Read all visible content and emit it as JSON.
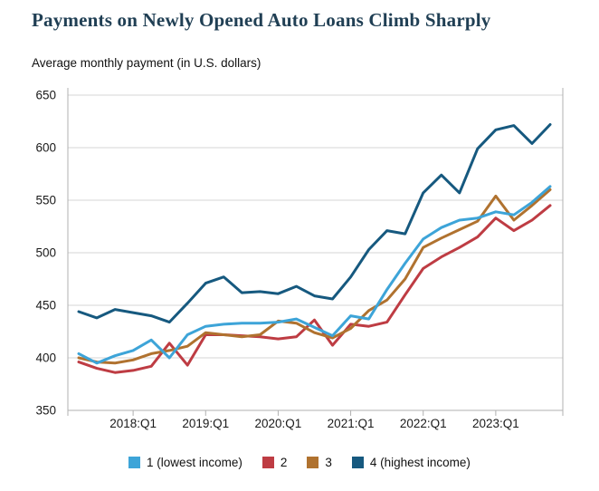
{
  "title": "Payments on Newly Opened Auto Loans Climb Sharply",
  "subtitle": "Average monthly payment (in U.S. dollars)",
  "colors": {
    "title_text": "#203f54",
    "axis": "#b0b0b0",
    "grid": "#d5d5d5",
    "tick_label": "#1a1a1a"
  },
  "chart_data": {
    "type": "line",
    "title": "Payments on Newly Opened Auto Loans Climb Sharply",
    "ylabel": "Average monthly payment (in U.S. dollars)",
    "ylim": [
      350,
      650
    ],
    "yticks": [
      650,
      600,
      550,
      500,
      450,
      400,
      350
    ],
    "grid": "horizontal",
    "legend_position": "bottom",
    "x": [
      "2017:Q2",
      "2017:Q3",
      "2017:Q4",
      "2018:Q1",
      "2018:Q2",
      "2018:Q3",
      "2018:Q4",
      "2019:Q1",
      "2019:Q2",
      "2019:Q3",
      "2019:Q4",
      "2020:Q1",
      "2020:Q2",
      "2020:Q3",
      "2020:Q4",
      "2021:Q1",
      "2021:Q2",
      "2021:Q3",
      "2021:Q4",
      "2022:Q1",
      "2022:Q2",
      "2022:Q3",
      "2022:Q4",
      "2023:Q1",
      "2023:Q2",
      "2023:Q3",
      "2023:Q4"
    ],
    "xticks": [
      "2018:Q1",
      "2019:Q1",
      "2020:Q1",
      "2021:Q1",
      "2022:Q1",
      "2023:Q1"
    ],
    "series": [
      {
        "name": "1 (lowest income)",
        "color": "#3da4d8",
        "values": [
          404,
          395,
          402,
          407,
          417,
          400,
          422,
          430,
          432,
          433,
          433,
          434,
          437,
          429,
          421,
          440,
          437,
          465,
          490,
          513,
          524,
          531,
          533,
          539,
          536,
          548,
          563
        ]
      },
      {
        "name": "2",
        "color": "#be3c43",
        "values": [
          396,
          390,
          386,
          388,
          392,
          414,
          393,
          422,
          422,
          421,
          420,
          418,
          420,
          436,
          412,
          432,
          430,
          434,
          460,
          485,
          496,
          505,
          515,
          533,
          521,
          531,
          545
        ]
      },
      {
        "name": "3",
        "color": "#b0722f",
        "values": [
          400,
          396,
          395,
          398,
          404,
          407,
          411,
          424,
          422,
          420,
          422,
          435,
          433,
          424,
          419,
          428,
          445,
          455,
          475,
          505,
          514,
          522,
          530,
          554,
          531,
          545,
          560
        ]
      },
      {
        "name": "4 (highest income)",
        "color": "#16597f",
        "values": [
          444,
          438,
          446,
          443,
          440,
          434,
          452,
          471,
          477,
          462,
          463,
          461,
          468,
          459,
          456,
          477,
          503,
          521,
          518,
          557,
          574,
          557,
          599,
          617,
          621,
          604,
          622
        ]
      }
    ]
  }
}
